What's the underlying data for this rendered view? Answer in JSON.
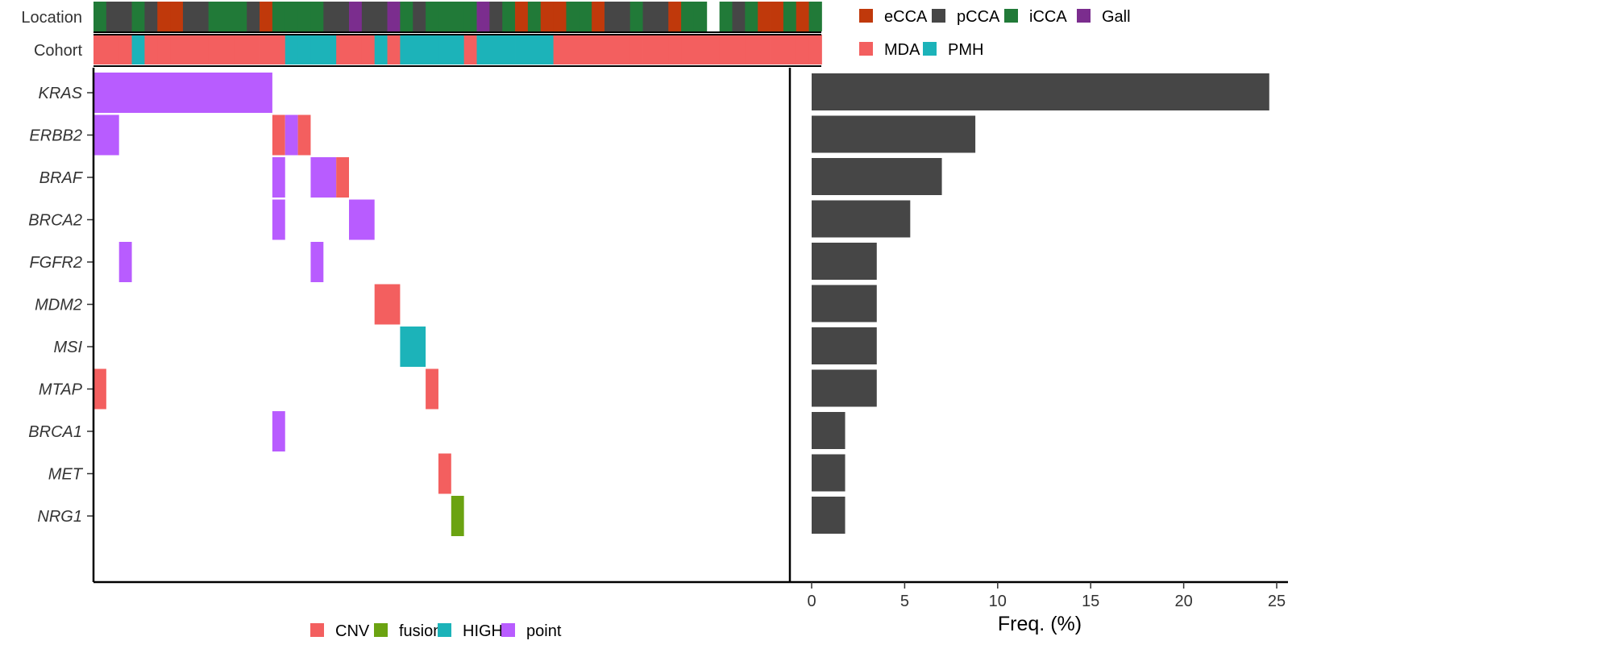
{
  "colors": {
    "eCCA": "#C0390B",
    "pCCA": "#464646",
    "iCCA": "#217A38",
    "Gall": "#7B2D8E",
    "MDA": "#F35F5F",
    "PMH": "#1CB3B9",
    "CNV": "#F35F5F",
    "fusion": "#6BA311",
    "HIGH": "#1CB3B9",
    "point": "#B85CFF",
    "bar": "#464646"
  },
  "tracks": {
    "location_label": "Location",
    "cohort_label": "Cohort"
  },
  "legends": {
    "location": [
      "eCCA",
      "pCCA",
      "iCCA",
      "Gall"
    ],
    "cohort": [
      "MDA",
      "PMH"
    ],
    "alteration": [
      "CNV",
      "fusion",
      "HIGH",
      "point"
    ]
  },
  "chart_data": [
    {
      "type": "heatmap",
      "name": "location-track",
      "samples": 57,
      "values": [
        "iCCA",
        "pCCA",
        "pCCA",
        "iCCA",
        "pCCA",
        "eCCA",
        "eCCA",
        "pCCA",
        "pCCA",
        "iCCA",
        "iCCA",
        "iCCA",
        "pCCA",
        "eCCA",
        "iCCA",
        "iCCA",
        "iCCA",
        "iCCA",
        "pCCA",
        "pCCA",
        "Gall",
        "pCCA",
        "pCCA",
        "Gall",
        "iCCA",
        "pCCA",
        "iCCA",
        "iCCA",
        "iCCA",
        "iCCA",
        "Gall",
        "pCCA",
        "iCCA",
        "eCCA",
        "iCCA",
        "eCCA",
        "eCCA",
        "iCCA",
        "iCCA",
        "eCCA",
        "pCCA",
        "pCCA",
        "iCCA",
        "pCCA",
        "pCCA",
        "eCCA",
        "iCCA",
        "iCCA",
        null,
        "iCCA",
        "pCCA",
        "iCCA",
        "eCCA",
        "eCCA",
        "iCCA",
        "eCCA",
        "iCCA"
      ]
    },
    {
      "type": "heatmap",
      "name": "cohort-track",
      "samples": 57,
      "values": [
        "MDA",
        "MDA",
        "MDA",
        "PMH",
        "MDA",
        "MDA",
        "MDA",
        "MDA",
        "MDA",
        "MDA",
        "MDA",
        "MDA",
        "MDA",
        "MDA",
        "MDA",
        "PMH",
        "PMH",
        "PMH",
        "PMH",
        "MDA",
        "MDA",
        "MDA",
        "PMH",
        "MDA",
        "PMH",
        "PMH",
        "PMH",
        "PMH",
        "PMH",
        "MDA",
        "PMH",
        "PMH",
        "PMH",
        "PMH",
        "PMH",
        "PMH",
        "MDA",
        "MDA",
        "MDA",
        "MDA",
        "MDA",
        "MDA",
        "MDA",
        "MDA",
        "MDA",
        "MDA",
        "MDA",
        "MDA",
        "MDA",
        "MDA",
        "MDA",
        "MDA",
        "MDA",
        "MDA",
        "MDA",
        "MDA",
        "MDA"
      ]
    },
    {
      "type": "heatmap",
      "name": "oncoprint",
      "genes": [
        "KRAS",
        "ERBB2",
        "BRAF",
        "BRCA2",
        "FGFR2",
        "MDM2",
        "MSI",
        "MTAP",
        "BRCA1",
        "MET",
        "NRG1"
      ],
      "samples": 57,
      "alterations": [
        {
          "gene": "KRAS",
          "from": 0,
          "to": 14,
          "type": "point"
        },
        {
          "gene": "ERBB2",
          "from": 0,
          "to": 2,
          "type": "point"
        },
        {
          "gene": "ERBB2",
          "from": 14,
          "to": 15,
          "type": "CNV"
        },
        {
          "gene": "ERBB2",
          "from": 15,
          "to": 16,
          "type": "point"
        },
        {
          "gene": "ERBB2",
          "from": 16,
          "to": 17,
          "type": "CNV"
        },
        {
          "gene": "BRAF",
          "from": 14,
          "to": 15,
          "type": "point"
        },
        {
          "gene": "BRAF",
          "from": 17,
          "to": 19,
          "type": "point"
        },
        {
          "gene": "BRAF",
          "from": 19,
          "to": 20,
          "type": "CNV"
        },
        {
          "gene": "BRCA2",
          "from": 14,
          "to": 15,
          "type": "point"
        },
        {
          "gene": "BRCA2",
          "from": 20,
          "to": 22,
          "type": "point"
        },
        {
          "gene": "FGFR2",
          "from": 2,
          "to": 3,
          "type": "point"
        },
        {
          "gene": "FGFR2",
          "from": 17,
          "to": 18,
          "type": "point"
        },
        {
          "gene": "MDM2",
          "from": 22,
          "to": 24,
          "type": "CNV"
        },
        {
          "gene": "MSI",
          "from": 24,
          "to": 26,
          "type": "HIGH"
        },
        {
          "gene": "MTAP",
          "from": 0,
          "to": 1,
          "type": "CNV"
        },
        {
          "gene": "MTAP",
          "from": 26,
          "to": 27,
          "type": "CNV"
        },
        {
          "gene": "BRCA1",
          "from": 14,
          "to": 15,
          "type": "point"
        },
        {
          "gene": "MET",
          "from": 27,
          "to": 28,
          "type": "CNV"
        },
        {
          "gene": "NRG1",
          "from": 28,
          "to": 29,
          "type": "fusion"
        }
      ]
    },
    {
      "type": "bar",
      "orientation": "horizontal",
      "categories": [
        "KRAS",
        "ERBB2",
        "BRAF",
        "BRCA2",
        "FGFR2",
        "MDM2",
        "MSI",
        "MTAP",
        "BRCA1",
        "MET",
        "NRG1"
      ],
      "values": [
        24.6,
        8.8,
        7.0,
        5.3,
        3.5,
        3.5,
        3.5,
        3.5,
        1.8,
        1.8,
        1.8
      ],
      "xlabel": "Freq. (%)",
      "xlim": [
        0,
        25
      ],
      "xticks": [
        "0",
        "5",
        "10",
        "15",
        "20",
        "25"
      ]
    }
  ]
}
